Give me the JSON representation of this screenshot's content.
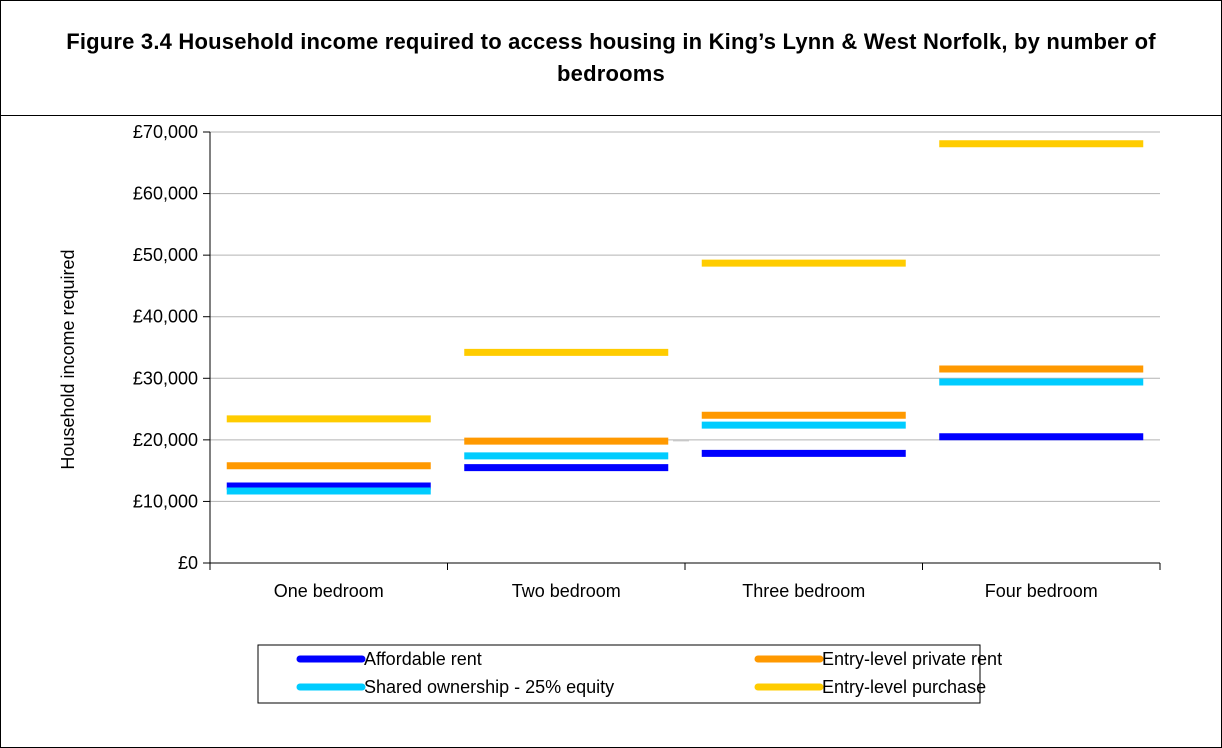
{
  "chart_data": {
    "type": "line",
    "title": "Figure 3.4 Household income required to access housing in King’s Lynn & West Norfolk, by number of bedrooms",
    "xlabel": "",
    "ylabel": "Household income required",
    "categories": [
      "One bedroom",
      "Two bedroom",
      "Three bedroom",
      "Four bedroom"
    ],
    "ylim": [
      0,
      70000
    ],
    "yticks": [
      0,
      10000,
      20000,
      30000,
      40000,
      50000,
      60000,
      70000
    ],
    "ytick_labels": [
      "£0",
      "£10,000",
      "£20,000",
      "£30,000",
      "£40,000",
      "£50,000",
      "£60,000",
      "£70,000"
    ],
    "grid": true,
    "legend_position": "bottom",
    "series": [
      {
        "name": "Affordable rent",
        "color": "#0000ff",
        "values": [
          12500,
          15500,
          17800,
          20500
        ]
      },
      {
        "name": "Entry-level private rent",
        "color": "#ff9900",
        "values": [
          15800,
          19800,
          24000,
          31500
        ]
      },
      {
        "name": "Shared ownership - 25% equity",
        "color": "#00ccff",
        "values": [
          11700,
          17400,
          22400,
          29400
        ]
      },
      {
        "name": "Entry-level purchase",
        "color": "#ffcc00",
        "values": [
          23400,
          34200,
          48700,
          68100
        ]
      }
    ]
  }
}
